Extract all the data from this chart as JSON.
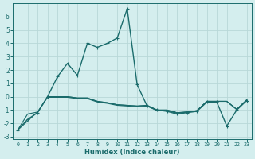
{
  "xlabel": "Humidex (Indice chaleur)",
  "bg_color": "#d4eeee",
  "line_color": "#1a6b6b",
  "grid_color": "#b8d8d8",
  "xlim": [
    -0.5,
    23.5
  ],
  "ylim": [
    -3.2,
    7.0
  ],
  "xticks": [
    0,
    1,
    2,
    3,
    4,
    5,
    6,
    7,
    8,
    9,
    10,
    11,
    12,
    13,
    14,
    15,
    16,
    17,
    18,
    19,
    20,
    21,
    22,
    23
  ],
  "yticks": [
    -3,
    -2,
    -1,
    0,
    1,
    2,
    3,
    4,
    5,
    6
  ],
  "series1_x": [
    0,
    1,
    2,
    3,
    4,
    5,
    6,
    7,
    8,
    9,
    10,
    11,
    12,
    13,
    14,
    15,
    16,
    17,
    18,
    19,
    20,
    21,
    22,
    23
  ],
  "series1_y": [
    -2.5,
    -1.7,
    -1.2,
    0.0,
    1.5,
    2.5,
    1.6,
    4.0,
    3.7,
    4.0,
    4.4,
    6.6,
    0.9,
    -0.7,
    -1.0,
    -1.1,
    -1.3,
    -1.2,
    -1.1,
    -0.4,
    -0.4,
    -2.2,
    -1.0,
    -0.3
  ],
  "series2_x": [
    0,
    1,
    2,
    3,
    4,
    5,
    6,
    7,
    8,
    9,
    10,
    11,
    12,
    13,
    14,
    15,
    16,
    17,
    18,
    19,
    20,
    21,
    22,
    23
  ],
  "series2_y": [
    -2.5,
    -1.3,
    -1.15,
    0.0,
    0.0,
    0.0,
    -0.1,
    -0.1,
    -0.35,
    -0.45,
    -0.6,
    -0.65,
    -0.7,
    -0.65,
    -1.0,
    -1.0,
    -1.2,
    -1.15,
    -1.05,
    -0.35,
    -0.35,
    -0.35,
    -0.95,
    -0.25
  ],
  "series3_x": [
    0,
    2,
    3,
    4,
    5,
    6,
    7,
    8,
    9,
    10,
    11,
    12,
    13,
    14,
    15,
    16,
    17,
    18,
    19,
    20,
    21,
    22,
    23
  ],
  "series3_y": [
    -2.5,
    -1.15,
    -0.05,
    -0.05,
    -0.05,
    -0.15,
    -0.15,
    -0.4,
    -0.5,
    -0.65,
    -0.7,
    -0.75,
    -0.7,
    -1.05,
    -1.05,
    -1.25,
    -1.15,
    -1.05,
    -0.35,
    -0.35,
    -0.35,
    -0.95,
    -0.25
  ],
  "series4_x": [
    3,
    4,
    5,
    6,
    7,
    8,
    9,
    10,
    11,
    12,
    13,
    14,
    15,
    16,
    17,
    18,
    19,
    20,
    21,
    22,
    23
  ],
  "series4_y": [
    0.0,
    0.0,
    0.0,
    -0.1,
    -0.1,
    -0.35,
    -0.45,
    -0.6,
    -0.65,
    -0.7,
    -0.65,
    -1.0,
    -1.0,
    -1.2,
    -1.15,
    -1.05,
    -0.35,
    -0.35,
    -0.35,
    -0.95,
    -0.25
  ]
}
